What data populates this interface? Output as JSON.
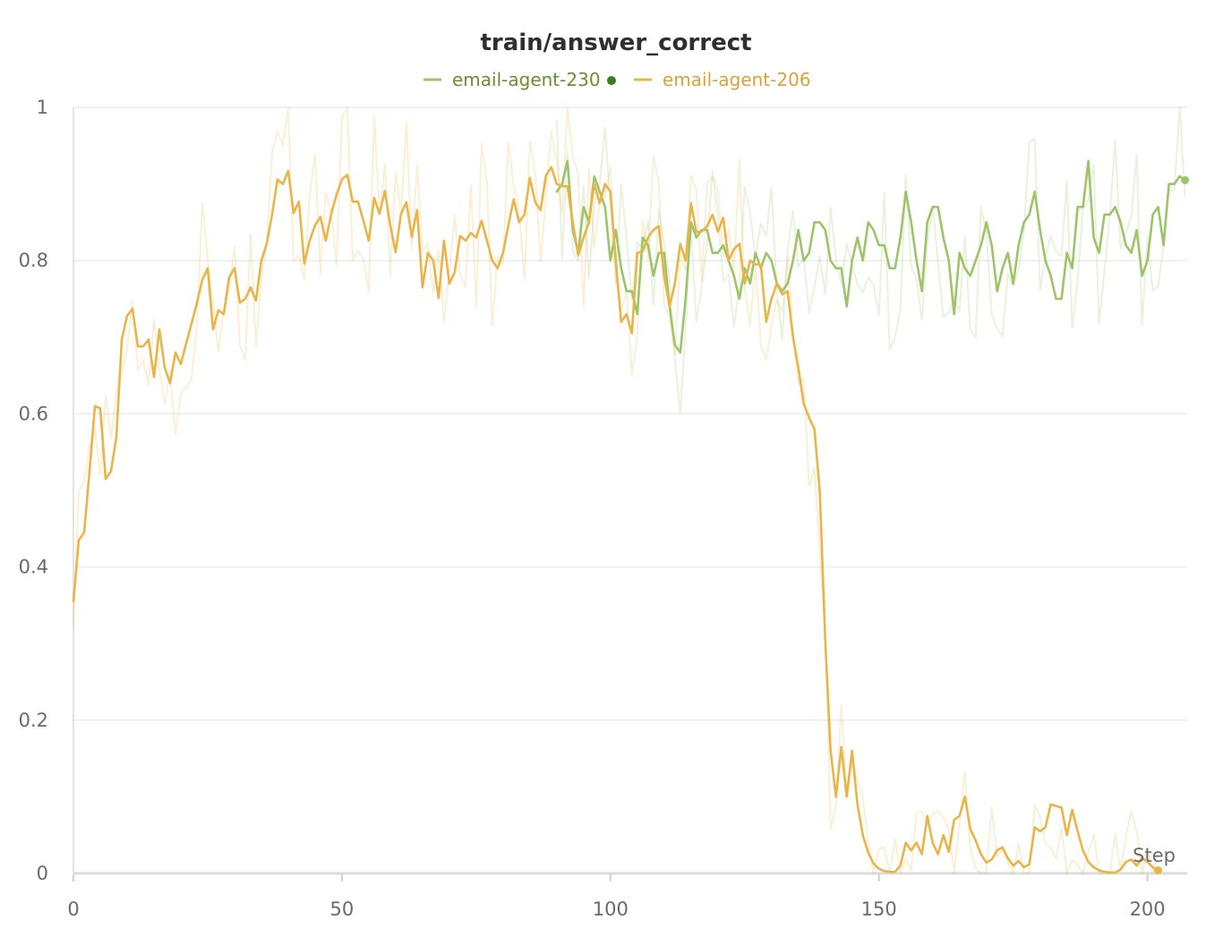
{
  "chart_data": {
    "type": "line",
    "title": "train/answer_correct",
    "xlabel": "Step",
    "ylabel": "",
    "xlim": [
      0,
      208
    ],
    "ylim": [
      0,
      1
    ],
    "x_ticks": [
      "0",
      "50",
      "100",
      "150",
      "200"
    ],
    "y_ticks": [
      "0",
      "0.2",
      "0.4",
      "0.6",
      "0.8",
      "1"
    ],
    "grid": true,
    "legend_position": "top-center",
    "series": [
      {
        "name": "email-agent-230",
        "color": "#9ec46a",
        "text_color": "#6b8f2e",
        "marker_color": "#3c7d1f",
        "x_start": 90,
        "values": [
          0.89,
          0.9,
          0.93,
          0.84,
          0.81,
          0.87,
          0.85,
          0.91,
          0.89,
          0.87,
          0.8,
          0.84,
          0.79,
          0.76,
          0.76,
          0.73,
          0.83,
          0.82,
          0.78,
          0.81,
          0.81,
          0.74,
          0.69,
          0.68,
          0.75,
          0.85,
          0.83,
          0.84,
          0.84,
          0.81,
          0.81,
          0.82,
          0.8,
          0.78,
          0.75,
          0.79,
          0.77,
          0.81,
          0.79,
          0.81,
          0.8,
          0.77,
          0.76,
          0.77,
          0.8,
          0.84,
          0.8,
          0.81,
          0.85,
          0.85,
          0.84,
          0.8,
          0.79,
          0.79,
          0.74,
          0.8,
          0.83,
          0.8,
          0.85,
          0.84,
          0.82,
          0.82,
          0.79,
          0.79,
          0.83,
          0.89,
          0.85,
          0.8,
          0.76,
          0.85,
          0.87,
          0.87,
          0.83,
          0.8,
          0.73,
          0.81,
          0.79,
          0.78,
          0.8,
          0.82,
          0.85,
          0.82,
          0.76,
          0.79,
          0.81,
          0.77,
          0.82,
          0.85,
          0.86,
          0.89,
          0.84,
          0.8,
          0.78,
          0.75,
          0.75,
          0.81,
          0.79,
          0.87,
          0.87,
          0.93,
          0.83,
          0.81,
          0.86,
          0.86,
          0.87,
          0.85,
          0.82,
          0.81,
          0.84,
          0.78,
          0.8,
          0.86,
          0.87,
          0.82,
          0.9,
          0.9,
          0.91,
          0.905
        ],
        "last_value": 0.905
      },
      {
        "name": "email-agent-206",
        "color": "#e8b548",
        "text_color": "#d9a23a",
        "marker_color": "#e8b548",
        "x_start": 0,
        "values": [
          0.355,
          0.435,
          0.445,
          0.525,
          0.61,
          0.607,
          0.515,
          0.525,
          0.57,
          0.697,
          0.728,
          0.737,
          0.688,
          0.688,
          0.697,
          0.648,
          0.71,
          0.66,
          0.64,
          0.68,
          0.665,
          0.692,
          0.718,
          0.745,
          0.775,
          0.79,
          0.71,
          0.735,
          0.73,
          0.778,
          0.79,
          0.745,
          0.75,
          0.765,
          0.748,
          0.8,
          0.822,
          0.86,
          0.906,
          0.9,
          0.917,
          0.862,
          0.877,
          0.796,
          0.826,
          0.846,
          0.857,
          0.826,
          0.861,
          0.886,
          0.906,
          0.912,
          0.877,
          0.877,
          0.852,
          0.826,
          0.882,
          0.861,
          0.891,
          0.846,
          0.811,
          0.861,
          0.876,
          0.831,
          0.866,
          0.765,
          0.81,
          0.8,
          0.751,
          0.826,
          0.77,
          0.785,
          0.832,
          0.826,
          0.836,
          0.83,
          0.852,
          0.826,
          0.8,
          0.79,
          0.81,
          0.846,
          0.88,
          0.85,
          0.86,
          0.908,
          0.876,
          0.866,
          0.911,
          0.922,
          0.9,
          0.897,
          0.897,
          0.85,
          0.807,
          0.83,
          0.85,
          0.9,
          0.875,
          0.9,
          0.89,
          0.8,
          0.72,
          0.73,
          0.705,
          0.81,
          0.812,
          0.83,
          0.84,
          0.845,
          0.78,
          0.74,
          0.77,
          0.822,
          0.8,
          0.875,
          0.837,
          0.838,
          0.845,
          0.86,
          0.838,
          0.856,
          0.8,
          0.815,
          0.822,
          0.77,
          0.8,
          0.795,
          0.795,
          0.72,
          0.75,
          0.77,
          0.756,
          0.76,
          0.7,
          0.66,
          0.613,
          0.595,
          0.58,
          0.497,
          0.305,
          0.16,
          0.1,
          0.165,
          0.1,
          0.16,
          0.09,
          0.05,
          0.027,
          0.013,
          0.006,
          0.003,
          0.002,
          0.002,
          0.01,
          0.04,
          0.03,
          0.04,
          0.025,
          0.075,
          0.04,
          0.025,
          0.05,
          0.028,
          0.07,
          0.075,
          0.1,
          0.058,
          0.043,
          0.025,
          0.014,
          0.018,
          0.03,
          0.034,
          0.02,
          0.01,
          0.016,
          0.008,
          0.012,
          0.06,
          0.055,
          0.06,
          0.09,
          0.088,
          0.086,
          0.05,
          0.083,
          0.055,
          0.03,
          0.015,
          0.008,
          0.004,
          0.002,
          0.001,
          0.001,
          0.005,
          0.015,
          0.018,
          0.01,
          0.02,
          0.015,
          0.008,
          0.004
        ],
        "last_value": 0.004
      }
    ]
  }
}
